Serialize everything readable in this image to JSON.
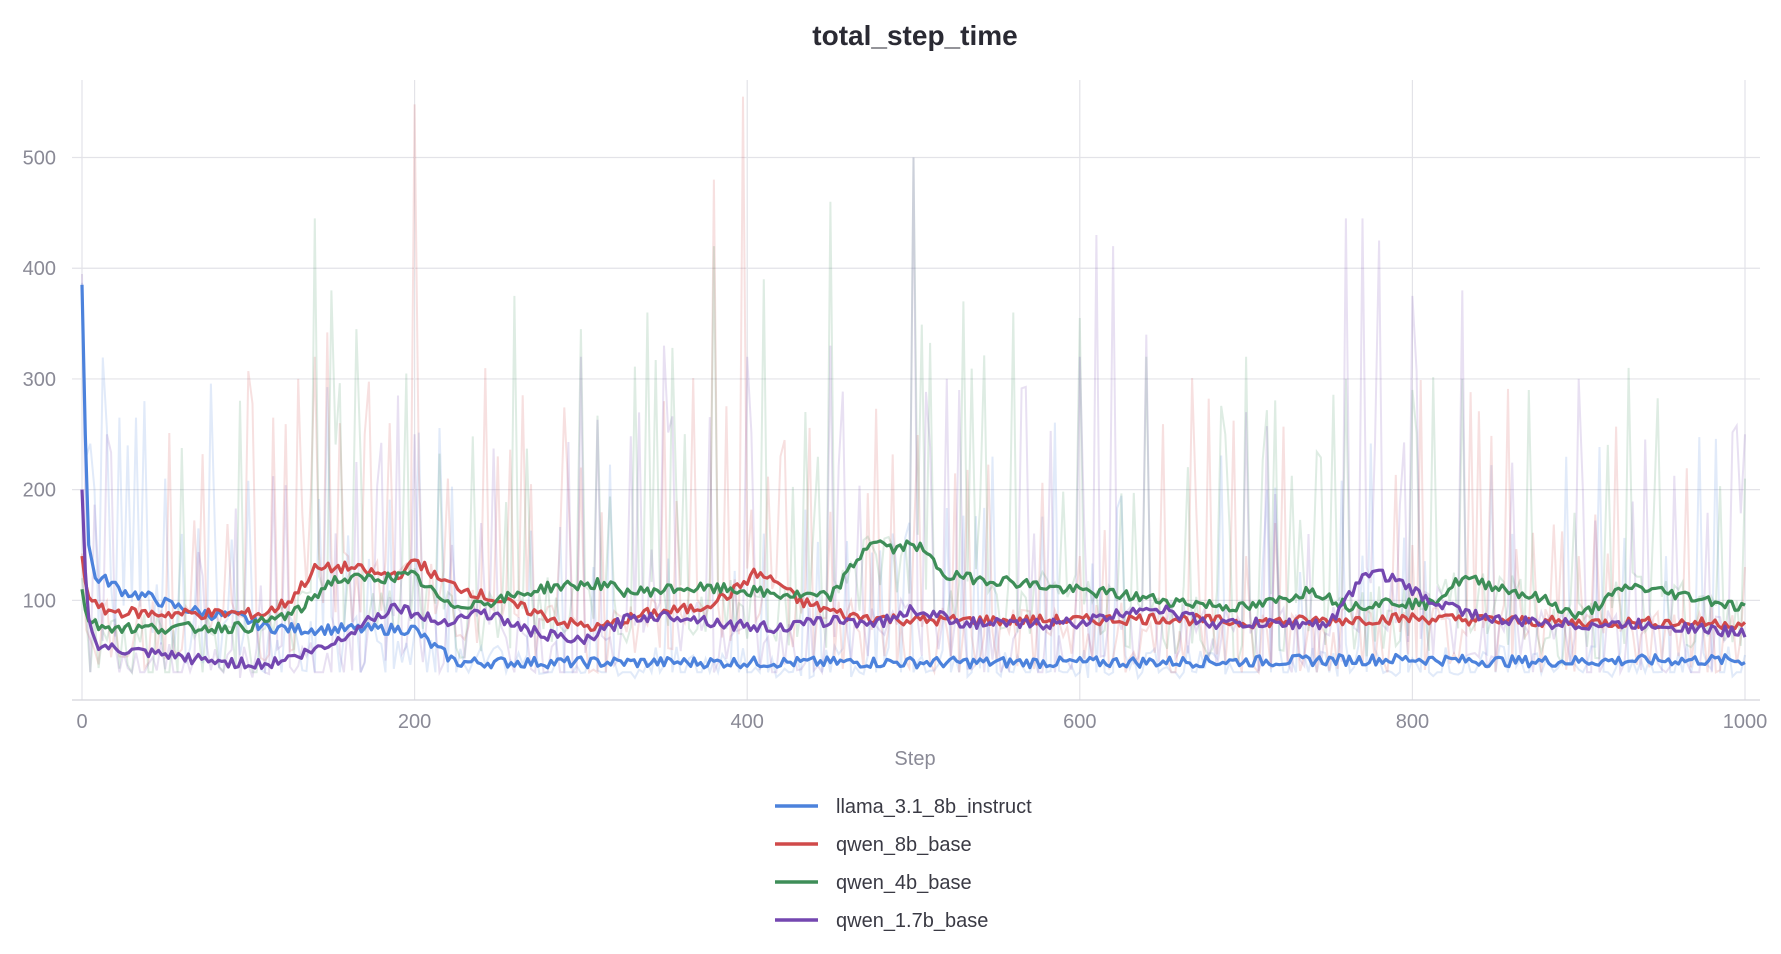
{
  "chart_data": {
    "type": "line",
    "title": "total_step_time",
    "xlabel": "Step",
    "ylabel": "",
    "xlim": [
      0,
      1000
    ],
    "ylim": [
      10,
      570
    ],
    "x_ticks": [
      0,
      200,
      400,
      600,
      800,
      1000
    ],
    "y_ticks": [
      100,
      200,
      300,
      400,
      500
    ],
    "grid": true,
    "legend_position": "bottom-center",
    "series": [
      {
        "name": "llama_3.1_8b_instruct",
        "color": "#4c82dc",
        "smoothed": [
          [
            0,
            385
          ],
          [
            2,
            250
          ],
          [
            4,
            150
          ],
          [
            8,
            120
          ],
          [
            15,
            118
          ],
          [
            25,
            108
          ],
          [
            40,
            103
          ],
          [
            55,
            95
          ],
          [
            75,
            88
          ],
          [
            95,
            85
          ],
          [
            110,
            76
          ],
          [
            130,
            74
          ],
          [
            160,
            74
          ],
          [
            200,
            74
          ],
          [
            210,
            60
          ],
          [
            225,
            44
          ],
          [
            300,
            44
          ],
          [
            400,
            44
          ],
          [
            500,
            44
          ],
          [
            600,
            44
          ],
          [
            700,
            45
          ],
          [
            750,
            46
          ],
          [
            800,
            47
          ],
          [
            850,
            45
          ],
          [
            900,
            45
          ],
          [
            950,
            46
          ],
          [
            1000,
            46
          ]
        ],
        "raw_spikes": [
          [
            3,
            230
          ],
          [
            8,
            200
          ],
          [
            15,
            255
          ],
          [
            22,
            265
          ],
          [
            28,
            240
          ],
          [
            33,
            265
          ],
          [
            38,
            280
          ],
          [
            50,
            210
          ],
          [
            60,
            160
          ],
          [
            70,
            165
          ],
          [
            80,
            160
          ],
          [
            90,
            155
          ]
        ]
      },
      {
        "name": "qwen_8b_base",
        "color": "#d04a4a",
        "smoothed": [
          [
            0,
            140
          ],
          [
            3,
            105
          ],
          [
            10,
            92
          ],
          [
            20,
            90
          ],
          [
            40,
            88
          ],
          [
            80,
            88
          ],
          [
            110,
            88
          ],
          [
            125,
            100
          ],
          [
            140,
            128
          ],
          [
            160,
            130
          ],
          [
            180,
            123
          ],
          [
            195,
            125
          ],
          [
            200,
            138
          ],
          [
            215,
            118
          ],
          [
            240,
            105
          ],
          [
            265,
            93
          ],
          [
            290,
            80
          ],
          [
            310,
            75
          ],
          [
            340,
            88
          ],
          [
            370,
            93
          ],
          [
            390,
            106
          ],
          [
            405,
            125
          ],
          [
            420,
            115
          ],
          [
            430,
            100
          ],
          [
            460,
            86
          ],
          [
            500,
            82
          ],
          [
            550,
            82
          ],
          [
            600,
            82
          ],
          [
            650,
            84
          ],
          [
            700,
            80
          ],
          [
            750,
            82
          ],
          [
            800,
            84
          ],
          [
            850,
            82
          ],
          [
            900,
            80
          ],
          [
            950,
            80
          ],
          [
            1000,
            79
          ]
        ],
        "raw_spikes": [
          [
            115,
            265
          ],
          [
            130,
            300
          ],
          [
            140,
            320
          ],
          [
            155,
            260
          ],
          [
            170,
            250
          ],
          [
            185,
            260
          ],
          [
            200,
            548
          ],
          [
            220,
            210
          ],
          [
            250,
            230
          ],
          [
            300,
            220
          ],
          [
            350,
            280
          ],
          [
            380,
            480
          ],
          [
            398,
            555
          ],
          [
            420,
            230
          ],
          [
            450,
            180
          ],
          [
            500,
            150
          ],
          [
            600,
            140
          ],
          [
            700,
            140
          ],
          [
            800,
            150
          ],
          [
            900,
            140
          ],
          [
            1000,
            130
          ]
        ]
      },
      {
        "name": "qwen_4b_base",
        "color": "#3e8e58",
        "smoothed": [
          [
            0,
            110
          ],
          [
            3,
            82
          ],
          [
            10,
            77
          ],
          [
            30,
            75
          ],
          [
            60,
            75
          ],
          [
            100,
            76
          ],
          [
            130,
            90
          ],
          [
            150,
            118
          ],
          [
            175,
            120
          ],
          [
            200,
            122
          ],
          [
            220,
            95
          ],
          [
            250,
            100
          ],
          [
            280,
            112
          ],
          [
            310,
            115
          ],
          [
            330,
            107
          ],
          [
            360,
            111
          ],
          [
            390,
            110
          ],
          [
            420,
            105
          ],
          [
            450,
            103
          ],
          [
            475,
            155
          ],
          [
            490,
            145
          ],
          [
            500,
            153
          ],
          [
            520,
            122
          ],
          [
            560,
            117
          ],
          [
            590,
            110
          ],
          [
            620,
            106
          ],
          [
            650,
            100
          ],
          [
            680,
            96
          ],
          [
            700,
            93
          ],
          [
            720,
            100
          ],
          [
            740,
            110
          ],
          [
            760,
            95
          ],
          [
            790,
            99
          ],
          [
            810,
            96
          ],
          [
            830,
            120
          ],
          [
            850,
            113
          ],
          [
            880,
            100
          ],
          [
            900,
            85
          ],
          [
            930,
            113
          ],
          [
            950,
            108
          ],
          [
            980,
            100
          ],
          [
            1000,
            93
          ]
        ],
        "raw_spikes": [
          [
            140,
            445
          ],
          [
            150,
            380
          ],
          [
            165,
            345
          ],
          [
            260,
            375
          ],
          [
            300,
            345
          ],
          [
            340,
            360
          ],
          [
            380,
            420
          ],
          [
            410,
            390
          ],
          [
            450,
            460
          ],
          [
            500,
            500
          ],
          [
            530,
            370
          ],
          [
            560,
            360
          ],
          [
            600,
            355
          ],
          [
            640,
            320
          ],
          [
            700,
            320
          ],
          [
            760,
            300
          ],
          [
            800,
            290
          ],
          [
            830,
            300
          ],
          [
            870,
            290
          ],
          [
            930,
            310
          ],
          [
            1000,
            210
          ]
        ]
      },
      {
        "name": "qwen_1.7b_base",
        "color": "#7447b0",
        "smoothed": [
          [
            0,
            200
          ],
          [
            3,
            90
          ],
          [
            8,
            60
          ],
          [
            20,
            55
          ],
          [
            50,
            50
          ],
          [
            80,
            45
          ],
          [
            110,
            42
          ],
          [
            130,
            50
          ],
          [
            150,
            60
          ],
          [
            175,
            85
          ],
          [
            190,
            95
          ],
          [
            200,
            88
          ],
          [
            215,
            80
          ],
          [
            240,
            90
          ],
          [
            270,
            72
          ],
          [
            300,
            62
          ],
          [
            330,
            85
          ],
          [
            360,
            86
          ],
          [
            390,
            78
          ],
          [
            420,
            75
          ],
          [
            450,
            82
          ],
          [
            480,
            80
          ],
          [
            500,
            92
          ],
          [
            530,
            80
          ],
          [
            560,
            78
          ],
          [
            600,
            80
          ],
          [
            620,
            86
          ],
          [
            640,
            95
          ],
          [
            680,
            79
          ],
          [
            720,
            79
          ],
          [
            750,
            79
          ],
          [
            765,
            110
          ],
          [
            775,
            128
          ],
          [
            790,
            118
          ],
          [
            810,
            100
          ],
          [
            850,
            82
          ],
          [
            900,
            78
          ],
          [
            950,
            78
          ],
          [
            1000,
            70
          ]
        ],
        "raw_spikes": [
          [
            190,
            285
          ],
          [
            200,
            250
          ],
          [
            300,
            320
          ],
          [
            350,
            330
          ],
          [
            400,
            320
          ],
          [
            450,
            330
          ],
          [
            500,
            500
          ],
          [
            520,
            300
          ],
          [
            600,
            320
          ],
          [
            610,
            430
          ],
          [
            620,
            420
          ],
          [
            640,
            340
          ],
          [
            700,
            270
          ],
          [
            760,
            445
          ],
          [
            770,
            445
          ],
          [
            780,
            425
          ],
          [
            800,
            375
          ],
          [
            830,
            380
          ],
          [
            900,
            300
          ],
          [
            1000,
            250
          ]
        ]
      }
    ]
  }
}
